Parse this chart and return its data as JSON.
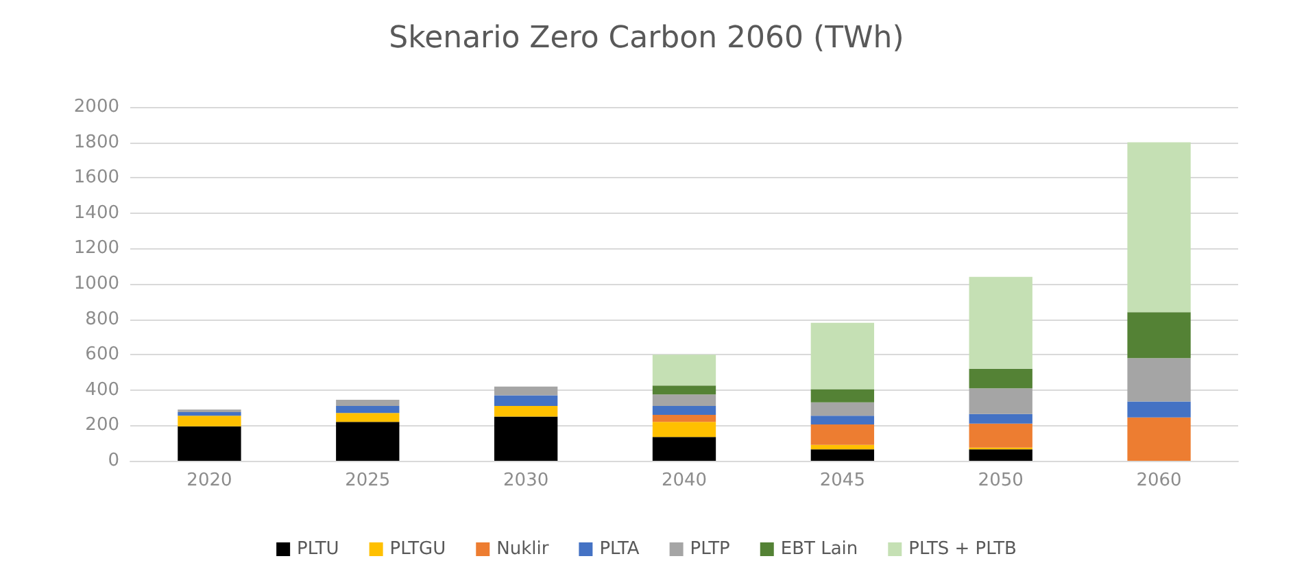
{
  "chart_data": {
    "type": "bar",
    "title": "Skenario Zero Carbon 2060 (TWh)",
    "stacked": true,
    "categories": [
      "2020",
      "2025",
      "2030",
      "2040",
      "2045",
      "2050",
      "2060"
    ],
    "series": [
      {
        "name": "PLTU",
        "color": "#000000",
        "values": [
          195,
          220,
          250,
          135,
          65,
          65,
          0
        ]
      },
      {
        "name": "PLTGU",
        "color": "#ffc000",
        "values": [
          60,
          50,
          60,
          85,
          25,
          10,
          0
        ]
      },
      {
        "name": "Nuklir",
        "color": "#ed7d31",
        "values": [
          0,
          0,
          0,
          40,
          115,
          135,
          245
        ]
      },
      {
        "name": "PLTA",
        "color": "#4472c4",
        "values": [
          20,
          40,
          60,
          50,
          50,
          55,
          90
        ]
      },
      {
        "name": "PLTP",
        "color": "#a5a5a5",
        "values": [
          15,
          35,
          50,
          65,
          75,
          145,
          245
        ]
      },
      {
        "name": "EBT Lain",
        "color": "#548235",
        "values": [
          null,
          null,
          null,
          50,
          75,
          110,
          260
        ]
      },
      {
        "name": "PLTS + PLTB",
        "color": "#c5e0b4",
        "values": [
          null,
          null,
          null,
          175,
          375,
          520,
          960
        ]
      }
    ],
    "ylim": [
      0,
      2000
    ],
    "yticks": [
      0,
      200,
      400,
      600,
      800,
      1000,
      1200,
      1400,
      1600,
      1800,
      2000
    ],
    "grid": "y",
    "legend": "bottom"
  }
}
